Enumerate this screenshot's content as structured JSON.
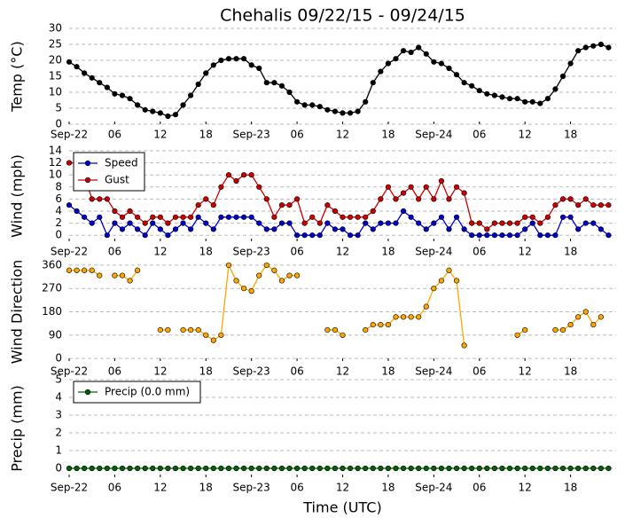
{
  "chart_data": [
    {
      "type": "line",
      "title": "Chehalis 09/22/15 - 09/24/15",
      "ylabel": "Temp (°C)",
      "grid": true,
      "xlim": [
        0,
        72
      ],
      "xticks": [
        {
          "value": 0,
          "label": "Sep-22"
        },
        {
          "value": 6,
          "label": "06"
        },
        12,
        18,
        {
          "value": 24,
          "label": "Sep-23"
        },
        {
          "value": 30,
          "label": "06"
        },
        {
          "value": 36,
          "label": "12"
        },
        {
          "value": 42,
          "label": "18"
        },
        {
          "value": 48,
          "label": "Sep-24"
        },
        {
          "value": 54,
          "label": "06"
        },
        {
          "value": 60,
          "label": "12"
        },
        {
          "value": 66,
          "label": "18"
        }
      ],
      "ylim": [
        0,
        30
      ],
      "yticks": [
        0,
        5,
        10,
        15,
        20,
        25,
        30
      ],
      "x": [
        0,
        1,
        2,
        3,
        4,
        5,
        6,
        7,
        8,
        9,
        10,
        11,
        12,
        13,
        14,
        15,
        16,
        17,
        18,
        19,
        20,
        21,
        22,
        23,
        24,
        25,
        26,
        27,
        28,
        29,
        30,
        31,
        32,
        33,
        34,
        35,
        36,
        37,
        38,
        39,
        40,
        41,
        42,
        43,
        44,
        45,
        46,
        47,
        48,
        49,
        50,
        51,
        52,
        53,
        54,
        55,
        56,
        57,
        58,
        59,
        60,
        61,
        62,
        63,
        64,
        65,
        66,
        67,
        68,
        69,
        70,
        71
      ],
      "series": [
        {
          "color": "#000000",
          "values": [
            19.5,
            18,
            16,
            14.5,
            13,
            11.5,
            9.5,
            9,
            8,
            6,
            4.5,
            4,
            3.5,
            2.5,
            3,
            6,
            9,
            12.5,
            16,
            18.5,
            20,
            20.5,
            20.5,
            20.5,
            18.5,
            17.5,
            13,
            13,
            12,
            10,
            7,
            6,
            6,
            5.5,
            4.5,
            4,
            3.5,
            3.5,
            4,
            7,
            13,
            16.5,
            19,
            20.5,
            23,
            22.5,
            24,
            22,
            19.5,
            19,
            17.5,
            15.5,
            13,
            12,
            10.5,
            9.5,
            9,
            8.5,
            8,
            8,
            7,
            7,
            6.5,
            8,
            11,
            15,
            19,
            23,
            24,
            24.5,
            25,
            24
          ]
        }
      ]
    },
    {
      "type": "line",
      "ylabel": "Wind (mph)",
      "grid": true,
      "legend": "upper left",
      "xlim": [
        0,
        72
      ],
      "xticks": [
        {
          "value": 0,
          "label": "Sep-22"
        },
        {
          "value": 6,
          "label": "06"
        },
        12,
        18,
        {
          "value": 24,
          "label": "Sep-23"
        },
        {
          "value": 30,
          "label": "06"
        },
        {
          "value": 36,
          "label": "12"
        },
        {
          "value": 42,
          "label": "18"
        },
        {
          "value": 48,
          "label": "Sep-24"
        },
        {
          "value": 54,
          "label": "06"
        },
        {
          "value": 60,
          "label": "12"
        },
        {
          "value": 66,
          "label": "18"
        }
      ],
      "ylim": [
        -1,
        14
      ],
      "yticks": [
        0,
        2,
        4,
        6,
        8,
        10,
        12,
        14
      ],
      "x": [
        0,
        1,
        2,
        3,
        4,
        5,
        6,
        7,
        8,
        9,
        10,
        11,
        12,
        13,
        14,
        15,
        16,
        17,
        18,
        19,
        20,
        21,
        22,
        23,
        24,
        25,
        26,
        27,
        28,
        29,
        30,
        31,
        32,
        33,
        34,
        35,
        36,
        37,
        38,
        39,
        40,
        41,
        42,
        43,
        44,
        45,
        46,
        47,
        48,
        49,
        50,
        51,
        52,
        53,
        54,
        55,
        56,
        57,
        58,
        59,
        60,
        61,
        62,
        63,
        64,
        65,
        66,
        67,
        68,
        69,
        70,
        71
      ],
      "series": [
        {
          "name": "Speed",
          "color": "#0000cc",
          "values": [
            5,
            4,
            3,
            2,
            3,
            0,
            2,
            1,
            2,
            1,
            0,
            2,
            1,
            0,
            1,
            2,
            1,
            3,
            2,
            1,
            3,
            3,
            3,
            3,
            3,
            2,
            1,
            1,
            2,
            2,
            0,
            0,
            0,
            0,
            2,
            1,
            1,
            0,
            0,
            2,
            1,
            2,
            2,
            2,
            4,
            3,
            2,
            1,
            2,
            3,
            1,
            3,
            1,
            0,
            0,
            0,
            0,
            0,
            0,
            0,
            1,
            2,
            0,
            0,
            0,
            3,
            3,
            1,
            2,
            2,
            1,
            0
          ]
        },
        {
          "name": "Gust",
          "color": "#cc0000",
          "values": [
            12,
            12,
            10,
            6,
            6,
            6,
            4,
            3,
            4,
            3,
            2,
            3,
            3,
            2,
            3,
            3,
            3,
            5,
            6,
            5,
            8,
            10,
            9,
            10,
            10,
            8,
            6,
            3,
            5,
            5,
            6,
            2,
            3,
            2,
            5,
            4,
            3,
            3,
            3,
            3,
            4,
            6,
            8,
            6,
            7,
            8,
            6,
            8,
            6,
            9,
            6,
            8,
            7,
            2,
            2,
            1,
            2,
            2,
            2,
            2,
            3,
            3,
            2,
            3,
            5,
            6,
            6,
            5,
            6,
            5,
            5,
            5
          ]
        }
      ]
    },
    {
      "type": "line",
      "ylabel": "Wind Direction",
      "grid": true,
      "xlim": [
        0,
        72
      ],
      "xticks": [
        {
          "value": 0,
          "label": "Sep-22"
        },
        {
          "value": 6,
          "label": "06"
        },
        12,
        18,
        {
          "value": 24,
          "label": "Sep-23"
        },
        {
          "value": 30,
          "label": "06"
        },
        {
          "value": 36,
          "label": "12"
        },
        {
          "value": 42,
          "label": "18"
        },
        {
          "value": 48,
          "label": "Sep-24"
        },
        {
          "value": 54,
          "label": "06"
        },
        {
          "value": 60,
          "label": "12"
        },
        {
          "value": 66,
          "label": "18"
        }
      ],
      "ylim": [
        -10,
        370
      ],
      "yticks": [
        0,
        90,
        180,
        270,
        360
      ],
      "x": [
        0,
        1,
        2,
        3,
        4,
        5,
        6,
        7,
        8,
        9,
        10,
        11,
        12,
        13,
        14,
        15,
        16,
        17,
        18,
        19,
        20,
        21,
        22,
        23,
        24,
        25,
        26,
        27,
        28,
        29,
        30,
        31,
        32,
        33,
        34,
        35,
        36,
        37,
        38,
        39,
        40,
        41,
        42,
        43,
        44,
        45,
        46,
        47,
        48,
        49,
        50,
        51,
        52,
        53,
        54,
        55,
        56,
        57,
        58,
        59,
        60,
        61,
        62,
        63,
        64,
        65,
        66,
        67,
        68,
        69,
        70,
        71
      ],
      "series": [
        {
          "color": "#ffa500",
          "values": [
            340,
            340,
            340,
            340,
            320,
            null,
            320,
            320,
            300,
            340,
            null,
            null,
            110,
            110,
            null,
            110,
            110,
            110,
            90,
            70,
            90,
            360,
            300,
            270,
            260,
            320,
            360,
            340,
            300,
            320,
            320,
            null,
            null,
            null,
            110,
            110,
            90,
            null,
            null,
            110,
            130,
            130,
            130,
            160,
            160,
            160,
            160,
            200,
            270,
            300,
            340,
            300,
            50,
            null,
            null,
            null,
            null,
            null,
            null,
            90,
            110,
            null,
            null,
            null,
            110,
            110,
            130,
            160,
            180,
            130,
            160,
            null
          ]
        }
      ]
    },
    {
      "type": "line",
      "ylabel": "Precip (mm)",
      "xlabel": "Time (UTC)",
      "grid": true,
      "legend": "upper left",
      "xlim": [
        0,
        72
      ],
      "xticks": [
        {
          "value": 0,
          "label": "Sep-22"
        },
        {
          "value": 6,
          "label": "06"
        },
        12,
        18,
        {
          "value": 24,
          "label": "Sep-23"
        },
        {
          "value": 30,
          "label": "06"
        },
        {
          "value": 36,
          "label": "12"
        },
        {
          "value": 42,
          "label": "18"
        },
        {
          "value": 48,
          "label": "Sep-24"
        },
        {
          "value": 54,
          "label": "06"
        },
        {
          "value": 60,
          "label": "12"
        },
        {
          "value": 66,
          "label": "18"
        }
      ],
      "ylim": [
        -0.5,
        5
      ],
      "yticks": [
        0,
        1,
        2,
        3,
        4,
        5
      ],
      "x": [
        0,
        1,
        2,
        3,
        4,
        5,
        6,
        7,
        8,
        9,
        10,
        11,
        12,
        13,
        14,
        15,
        16,
        17,
        18,
        19,
        20,
        21,
        22,
        23,
        24,
        25,
        26,
        27,
        28,
        29,
        30,
        31,
        32,
        33,
        34,
        35,
        36,
        37,
        38,
        39,
        40,
        41,
        42,
        43,
        44,
        45,
        46,
        47,
        48,
        49,
        50,
        51,
        52,
        53,
        54,
        55,
        56,
        57,
        58,
        59,
        60,
        61,
        62,
        63,
        64,
        65,
        66,
        67,
        68,
        69,
        70,
        71
      ],
      "series": [
        {
          "name": "Precip (0.0 mm)",
          "color": "#006400",
          "values": [
            0,
            0,
            0,
            0,
            0,
            0,
            0,
            0,
            0,
            0,
            0,
            0,
            0,
            0,
            0,
            0,
            0,
            0,
            0,
            0,
            0,
            0,
            0,
            0,
            0,
            0,
            0,
            0,
            0,
            0,
            0,
            0,
            0,
            0,
            0,
            0,
            0,
            0,
            0,
            0,
            0,
            0,
            0,
            0,
            0,
            0,
            0,
            0,
            0,
            0,
            0,
            0,
            0,
            0,
            0,
            0,
            0,
            0,
            0,
            0,
            0,
            0,
            0,
            0,
            0,
            0,
            0,
            0,
            0,
            0,
            0,
            0
          ]
        }
      ]
    }
  ]
}
